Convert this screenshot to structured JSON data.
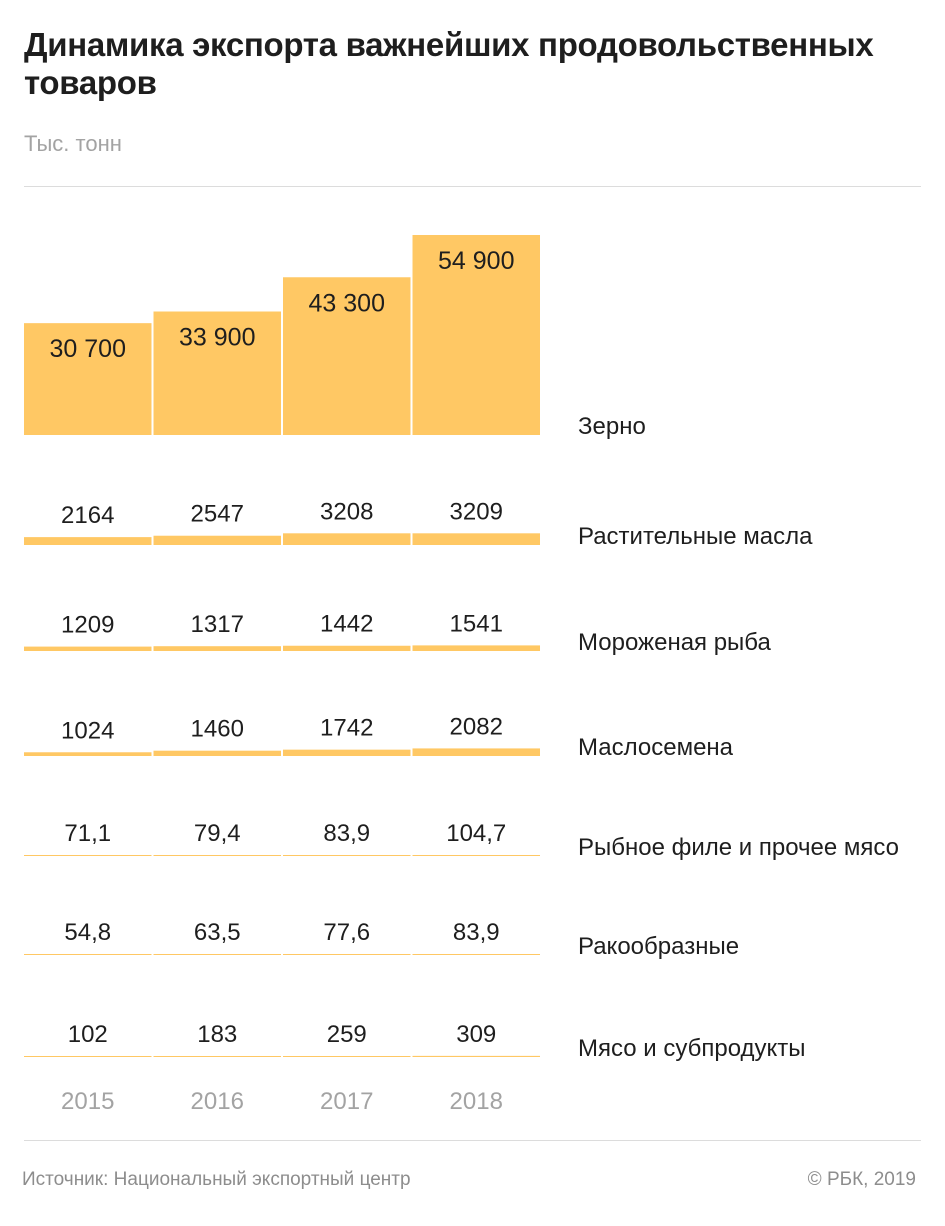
{
  "header": {
    "title": "Динамика экспорта важнейших продовольственных товаров",
    "subtitle": "Тыс. тонн"
  },
  "footer": {
    "source": "Источник: Национальный экспортный центр",
    "copyright": "© РБК, 2019"
  },
  "colors": {
    "bar": "#ffc864",
    "text": "#1e1e1e",
    "muted": "#a3a3a3",
    "rule": "#dcdcdc"
  },
  "chart_data": {
    "type": "bar",
    "categories": [
      "2015",
      "2016",
      "2017",
      "2018"
    ],
    "series": [
      {
        "name": "Зерно",
        "values": [
          30700,
          33900,
          43300,
          54900
        ],
        "labels": [
          "30 700",
          "33 900",
          "43 300",
          "54 900"
        ]
      },
      {
        "name": "Растительные масла",
        "values": [
          2164,
          2547,
          3208,
          3209
        ],
        "labels": [
          "2164",
          "2547",
          "3208",
          "3209"
        ]
      },
      {
        "name": "Мороженая рыба",
        "values": [
          1209,
          1317,
          1442,
          1541
        ],
        "labels": [
          "1209",
          "1317",
          "1442",
          "1541"
        ]
      },
      {
        "name": "Маслосемена",
        "values": [
          1024,
          1460,
          1742,
          2082
        ],
        "labels": [
          "1024",
          "1460",
          "1742",
          "2082"
        ]
      },
      {
        "name": "Рыбное филе и прочее мясо",
        "values": [
          71.1,
          79.4,
          83.9,
          104.7
        ],
        "labels": [
          "71,1",
          "79,4",
          "83,9",
          "104,7"
        ]
      },
      {
        "name": "Ракообразные",
        "values": [
          54.8,
          63.5,
          77.6,
          83.9
        ],
        "labels": [
          "54,8",
          "63,5",
          "77,6",
          "83,9"
        ]
      },
      {
        "name": "Мясо и субпродукты",
        "values": [
          102,
          183,
          259,
          309
        ],
        "labels": [
          "102",
          "183",
          "259",
          "309"
        ]
      }
    ]
  }
}
